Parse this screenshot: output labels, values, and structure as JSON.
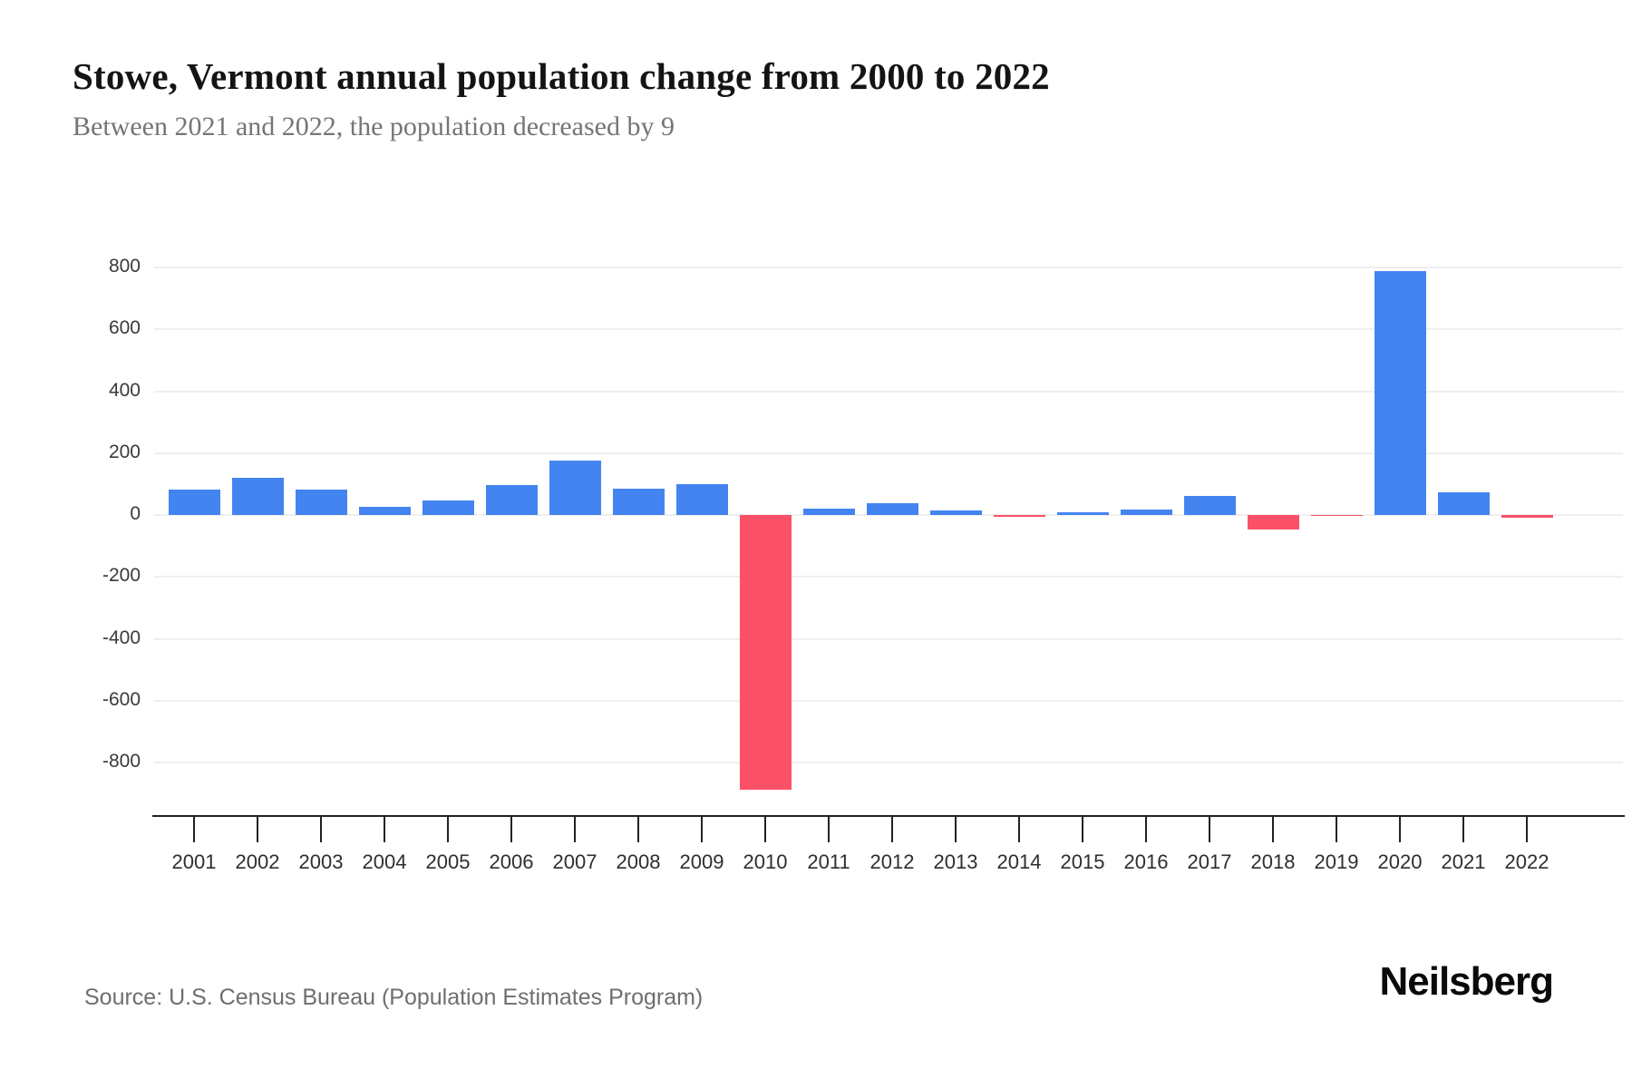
{
  "page": {
    "title": "Stowe, Vermont annual population change from 2000 to 2022",
    "subtitle": "Between 2021 and 2022, the population decreased by 9",
    "source": "Source: U.S. Census Bureau (Population Estimates Program)",
    "brand": "Neilsberg"
  },
  "colors": {
    "positive_bar": "#4484f0",
    "negative_bar": "#fb5168",
    "gridline": "#efefef",
    "axis": "#222222",
    "tick_label": "#2e2e2e",
    "subtitle_text": "#757575",
    "source_text": "#6e6e6e"
  },
  "chart_data": {
    "type": "bar",
    "title": "Stowe, Vermont annual population change from 2000 to 2022",
    "subtitle": "Between 2021 and 2022, the population decreased by 9",
    "xlabel": "",
    "ylabel": "",
    "categories": [
      "2001",
      "2002",
      "2003",
      "2004",
      "2005",
      "2006",
      "2007",
      "2008",
      "2009",
      "2010",
      "2011",
      "2012",
      "2013",
      "2014",
      "2015",
      "2016",
      "2017",
      "2018",
      "2019",
      "2020",
      "2021",
      "2022"
    ],
    "values": [
      81,
      120,
      82,
      25,
      47,
      97,
      177,
      85,
      101,
      -887,
      20,
      39,
      15,
      -6,
      10,
      17,
      62,
      -46,
      -2,
      787,
      72,
      -9
    ],
    "yticks": [
      800,
      600,
      400,
      200,
      0,
      -200,
      -400,
      -600,
      -800
    ],
    "ylim": [
      -975,
      870
    ],
    "grid": true,
    "legend": false,
    "positive_color": "#4484f0",
    "negative_color": "#fb5168"
  }
}
